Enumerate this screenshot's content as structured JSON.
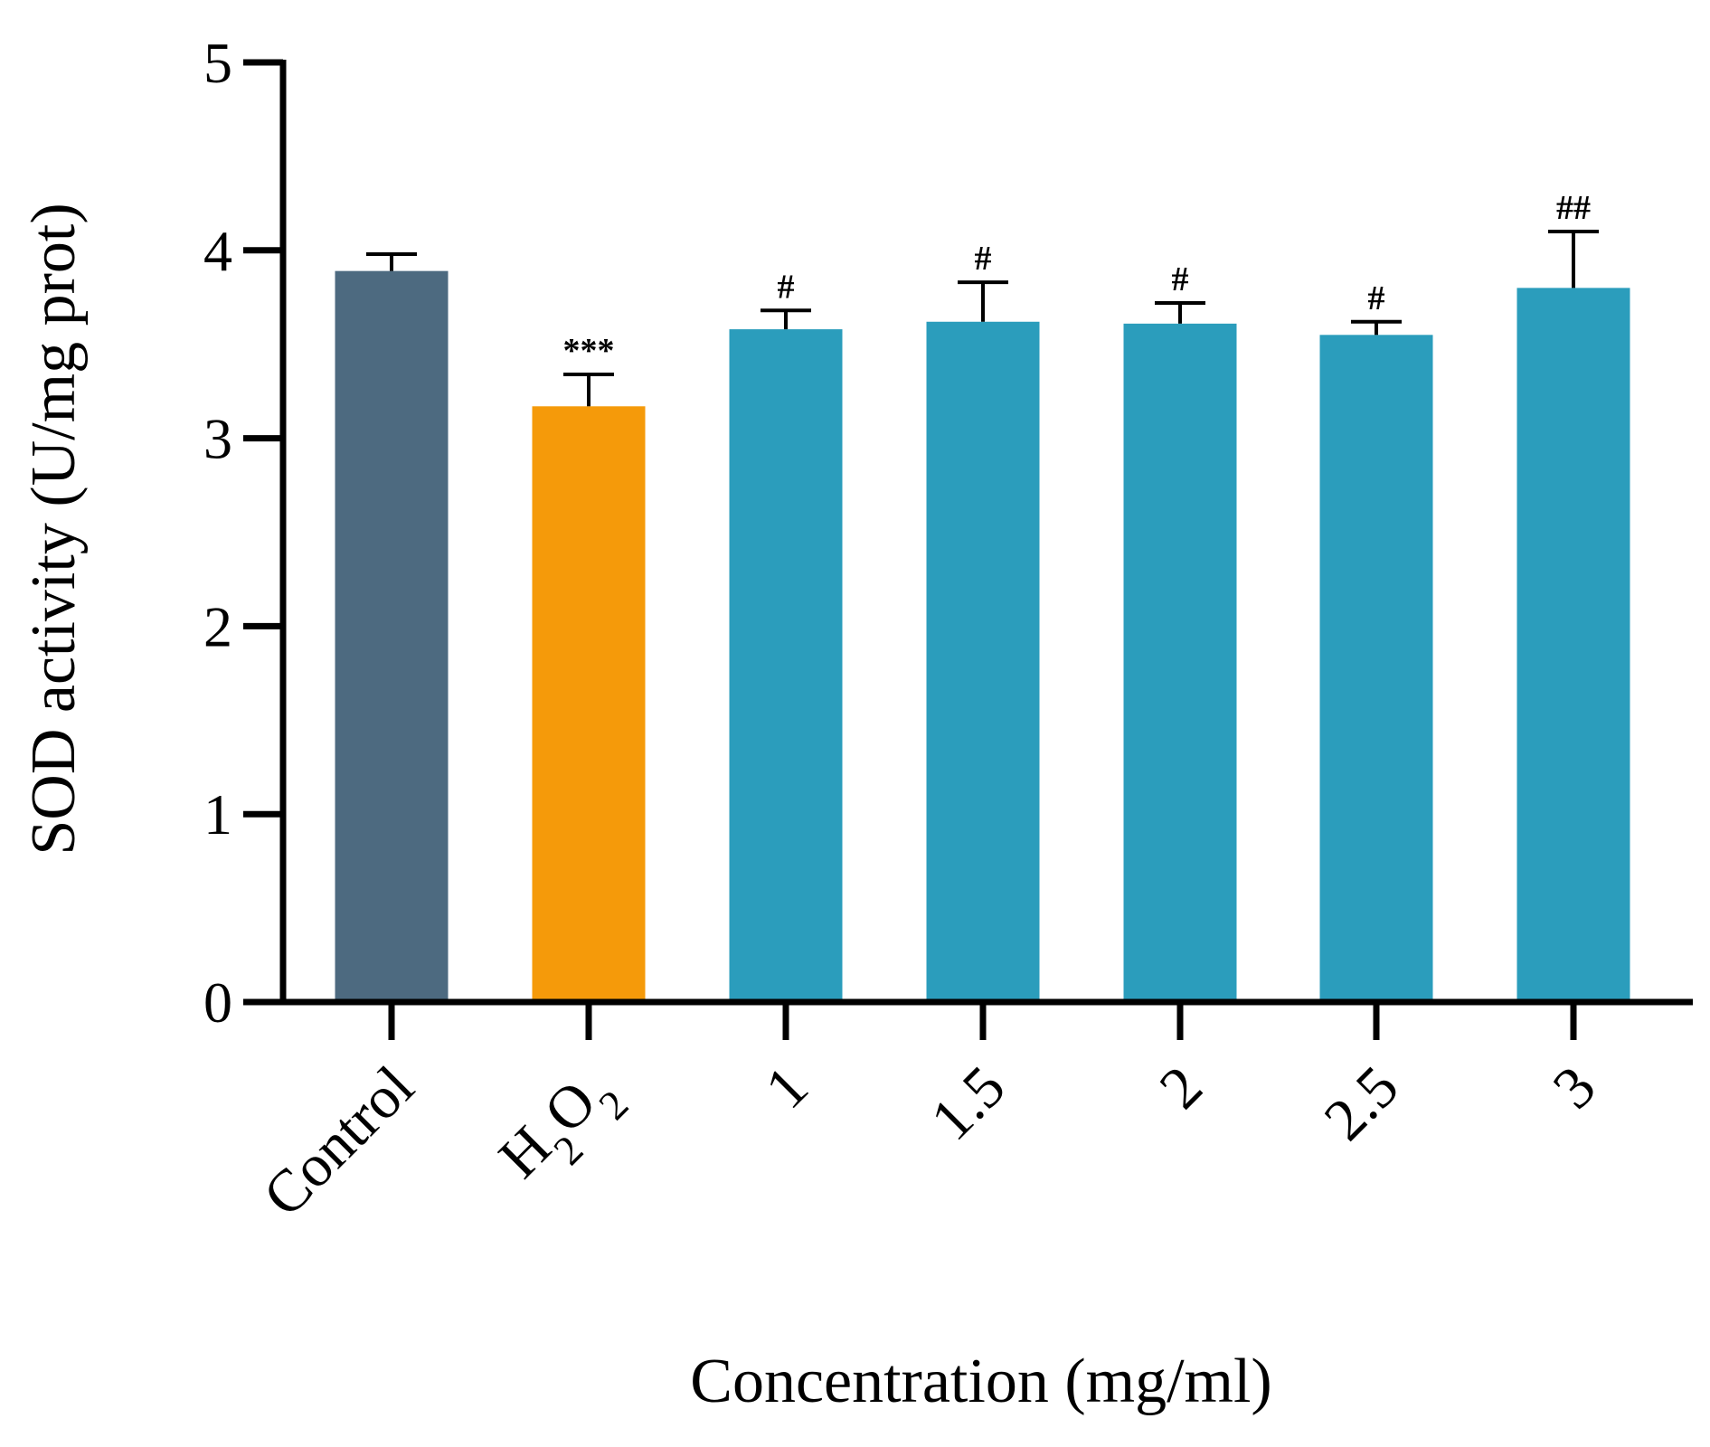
{
  "chart_data": {
    "type": "bar",
    "title": "",
    "ylabel": "SOD activity  (U/mg prot)",
    "xlabel": "Concentration (mg/ml)",
    "ylim": [
      0,
      5
    ],
    "yticks": [
      "0",
      "1",
      "2",
      "3",
      "4",
      "5"
    ],
    "categories": [
      {
        "id": "control",
        "label": "Control"
      },
      {
        "id": "h2o2",
        "label": "H",
        "sub1": "2",
        "mid": "O",
        "sub2": "2"
      },
      {
        "id": "c1",
        "label": "1"
      },
      {
        "id": "c1_5",
        "label": "1.5"
      },
      {
        "id": "c2",
        "label": "2"
      },
      {
        "id": "c2_5",
        "label": "2.5"
      },
      {
        "id": "c3",
        "label": "3"
      }
    ],
    "values": [
      3.89,
      3.17,
      3.58,
      3.62,
      3.61,
      3.55,
      3.8
    ],
    "errors": [
      0.09,
      0.17,
      0.1,
      0.21,
      0.11,
      0.07,
      0.3
    ],
    "annotations": [
      "",
      "***",
      "#",
      "#",
      "#",
      "#",
      "##"
    ],
    "colors": [
      "#4d6a80",
      "#f59a0a",
      "#2b9dbc",
      "#2b9dbc",
      "#2b9dbc",
      "#2b9dbc",
      "#2b9dbc"
    ]
  }
}
